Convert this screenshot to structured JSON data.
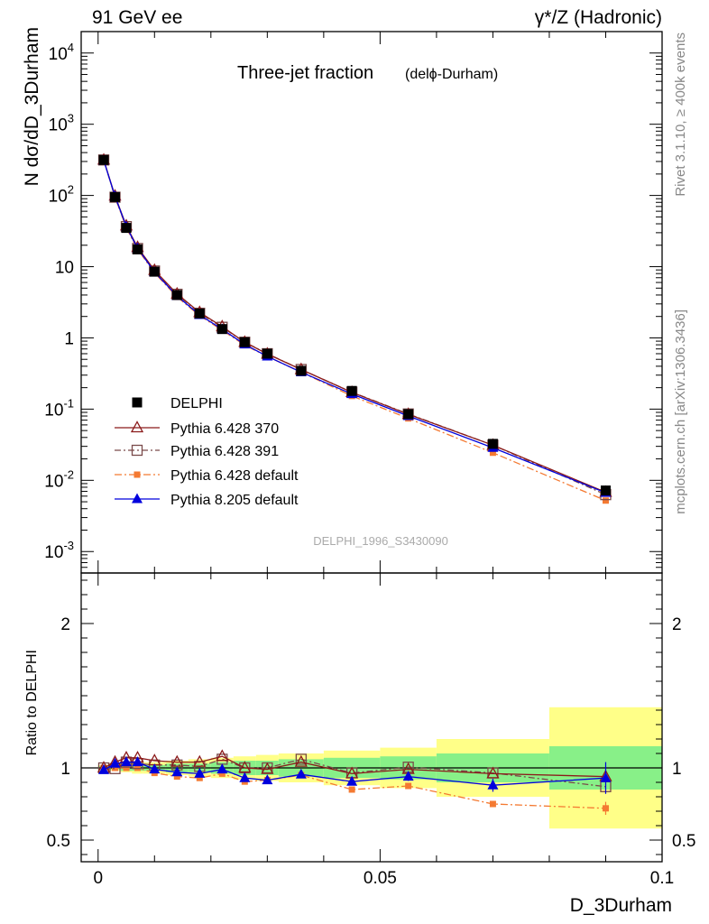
{
  "header": {
    "left": "91 GeV ee",
    "right": "γ*/Z (Hadronic)"
  },
  "side": {
    "rivet": "Rivet 3.1.10, ≥ 400k events",
    "mcplots": "mcplots.cern.ch [arXiv:1306.3436]"
  },
  "colors": {
    "data": "#000000",
    "p370": "#8b1a1a",
    "p391": "#7a4a4a",
    "pdef": "#f47a32",
    "p8": "#0000dd",
    "band_inner": "#88f088",
    "band_outer": "#ffff88"
  },
  "chart_data": [
    {
      "type": "line",
      "title_main": "Three-jet fraction",
      "title_sub": "(delϕ-Durham)",
      "watermark": "DELPHI_1996_S3430090",
      "ylabel": "N dσ/dD_3Durham",
      "yscale": "log",
      "ylim": [
        0.0005,
        20000
      ],
      "xlim": [
        -0.003,
        0.1
      ],
      "ytick_labels": [
        "10^4",
        "10^3",
        "10^2",
        "10",
        "1",
        "10^-1",
        "10^-2",
        "10^-3"
      ],
      "x": [
        0.001,
        0.003,
        0.005,
        0.007,
        0.01,
        0.014,
        0.018,
        0.022,
        0.026,
        0.03,
        0.036,
        0.045,
        0.055,
        0.07,
        0.09
      ],
      "series": [
        {
          "name": "DELPHI",
          "key": "data",
          "marker": "square",
          "values": [
            315,
            95,
            35,
            17.5,
            8.5,
            4.0,
            2.2,
            1.33,
            0.87,
            0.6,
            0.345,
            0.18,
            0.085,
            0.0325,
            0.0072
          ]
        },
        {
          "name": "Pythia 6.428 370",
          "key": "p370",
          "marker": "triangle-open",
          "values": [
            315,
            98.5,
            37.5,
            18.7,
            8.9,
            4.15,
            2.28,
            1.44,
            0.87,
            0.595,
            0.36,
            0.172,
            0.0845,
            0.0312,
            0.0068
          ]
        },
        {
          "name": "Pythia 6.428 391",
          "key": "p391",
          "marker": "square-open",
          "values": [
            315,
            94.5,
            36.5,
            18.0,
            8.7,
            4.1,
            2.22,
            1.41,
            0.87,
            0.6,
            0.36,
            0.173,
            0.0855,
            0.0312,
            0.0063
          ]
        },
        {
          "name": "Pythia 6.428 default",
          "key": "pdef",
          "marker": "square-small",
          "values": [
            315,
            95,
            35,
            17.5,
            8.2,
            3.76,
            2.05,
            1.28,
            0.79,
            0.55,
            0.33,
            0.153,
            0.074,
            0.0244,
            0.0052
          ]
        },
        {
          "name": "Pythia 8.205 default",
          "key": "p8",
          "marker": "triangle",
          "values": [
            310,
            97.5,
            36.5,
            18.2,
            8.4,
            3.88,
            2.1,
            1.32,
            0.81,
            0.55,
            0.33,
            0.163,
            0.08,
            0.0286,
            0.0067
          ]
        }
      ]
    },
    {
      "type": "line",
      "ylabel": "Ratio to DELPHI",
      "xlabel": "D_3Durham",
      "ylim": [
        0.35,
        2.35
      ],
      "xlim": [
        -0.003,
        0.1
      ],
      "ytick_labels": [
        "2",
        "1",
        "0.5"
      ],
      "xtick_labels": [
        "0",
        "0.05",
        "0.1"
      ],
      "x": [
        0.001,
        0.003,
        0.005,
        0.007,
        0.01,
        0.014,
        0.018,
        0.022,
        0.026,
        0.03,
        0.036,
        0.045,
        0.055,
        0.07,
        0.09
      ],
      "bins": [
        [
          0,
          0.002
        ],
        [
          0.002,
          0.004
        ],
        [
          0.004,
          0.006
        ],
        [
          0.006,
          0.008
        ],
        [
          0.008,
          0.012
        ],
        [
          0.012,
          0.016
        ],
        [
          0.016,
          0.02
        ],
        [
          0.02,
          0.024
        ],
        [
          0.024,
          0.028
        ],
        [
          0.028,
          0.032
        ],
        [
          0.032,
          0.04
        ],
        [
          0.04,
          0.05
        ],
        [
          0.05,
          0.06
        ],
        [
          0.06,
          0.08
        ],
        [
          0.08,
          0.1
        ]
      ],
      "band_inner": [
        0.01,
        0.01,
        0.02,
        0.02,
        0.02,
        0.03,
        0.03,
        0.04,
        0.05,
        0.05,
        0.06,
        0.07,
        0.08,
        0.1,
        0.15
      ],
      "band_outer": [
        0.02,
        0.02,
        0.03,
        0.04,
        0.04,
        0.05,
        0.06,
        0.07,
        0.08,
        0.09,
        0.1,
        0.12,
        0.14,
        0.2,
        0.42
      ],
      "series": [
        {
          "name": "Pythia 6.428 370",
          "key": "p370",
          "marker": "triangle-open",
          "values": [
            1.0,
            1.04,
            1.07,
            1.07,
            1.05,
            1.04,
            1.04,
            1.08,
            1.0,
            0.99,
            1.04,
            0.96,
            0.99,
            0.96,
            0.94
          ]
        },
        {
          "name": "Pythia 6.428 391",
          "key": "p391",
          "marker": "square-open",
          "values": [
            1.0,
            0.995,
            1.04,
            1.03,
            1.02,
            1.02,
            1.01,
            1.06,
            1.0,
            1.0,
            1.06,
            0.965,
            1.005,
            0.965,
            0.87
          ]
        },
        {
          "name": "Pythia 6.428 default",
          "key": "pdef",
          "marker": "square-small",
          "values": [
            1.0,
            1.0,
            1.0,
            1.0,
            0.965,
            0.94,
            0.93,
            0.96,
            0.905,
            0.915,
            0.95,
            0.85,
            0.875,
            0.75,
            0.72
          ]
        },
        {
          "name": "Pythia 8.205 default",
          "key": "p8",
          "marker": "triangle",
          "values": [
            0.985,
            1.03,
            1.04,
            1.04,
            0.99,
            0.97,
            0.96,
            0.99,
            0.93,
            0.915,
            0.955,
            0.905,
            0.94,
            0.88,
            0.93
          ]
        }
      ],
      "errors": {
        "pdef": [
          0,
          0,
          0,
          0,
          0,
          0,
          0,
          0,
          0,
          0,
          0,
          0,
          0.015,
          0.02,
          0.045
        ],
        "p8": [
          0,
          0,
          0,
          0,
          0,
          0,
          0,
          0,
          0,
          0,
          0,
          0,
          0.03,
          0.045,
          0.11
        ]
      }
    }
  ]
}
